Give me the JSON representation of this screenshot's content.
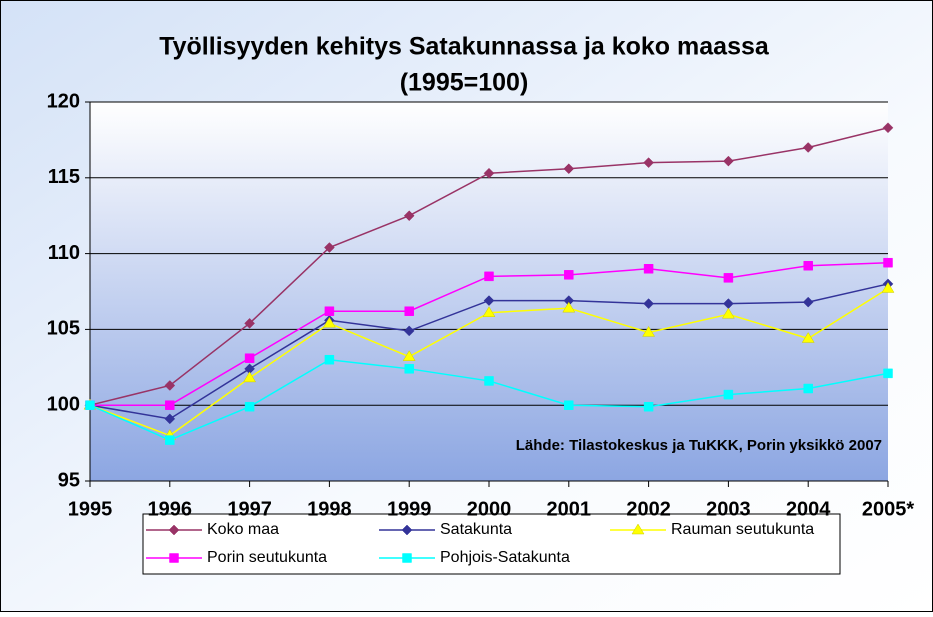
{
  "chart_data": {
    "type": "line",
    "title": [
      "Työllisyyden kehitys Satakunnassa ja koko maassa",
      "(1995=100)"
    ],
    "annotation": "Lähde: Tilastokeskus ja TuKKK, Porin yksikkö 2007",
    "categories": [
      "1995",
      "1996",
      "1997",
      "1998",
      "1999",
      "2000",
      "2001",
      "2002",
      "2003",
      "2004",
      "2005*"
    ],
    "series": [
      {
        "name": "Koko maa",
        "color": "#993366",
        "marker": "diamond",
        "values": [
          100,
          101.3,
          105.4,
          110.4,
          112.5,
          115.3,
          115.6,
          116.0,
          116.1,
          117.0,
          118.3
        ]
      },
      {
        "name": "Satakunta",
        "color": "#333399",
        "marker": "diamond",
        "values": [
          100,
          99.1,
          102.4,
          105.6,
          104.9,
          106.9,
          106.9,
          106.7,
          106.7,
          106.8,
          108.0
        ]
      },
      {
        "name": "Rauman seutukunta",
        "color": "#ffff00",
        "marker": "triangle",
        "values": [
          100,
          98.0,
          101.8,
          105.4,
          103.2,
          106.1,
          106.4,
          104.8,
          106.0,
          104.4,
          107.7
        ]
      },
      {
        "name": "Porin seutukunta",
        "color": "#ff00ff",
        "marker": "square",
        "values": [
          100,
          100.0,
          103.1,
          106.2,
          106.2,
          108.5,
          108.6,
          109.0,
          108.4,
          109.2,
          109.4
        ]
      },
      {
        "name": "Pohjois-Satakunta",
        "color": "#00ffff",
        "marker": "square",
        "values": [
          100,
          97.7,
          99.9,
          103.0,
          102.4,
          101.6,
          100.0,
          99.9,
          100.7,
          101.1,
          102.1
        ]
      }
    ],
    "ylim": [
      95,
      120
    ],
    "yticks": [
      95,
      100,
      105,
      110,
      115,
      120
    ],
    "grid": true,
    "legend": "bottom"
  }
}
